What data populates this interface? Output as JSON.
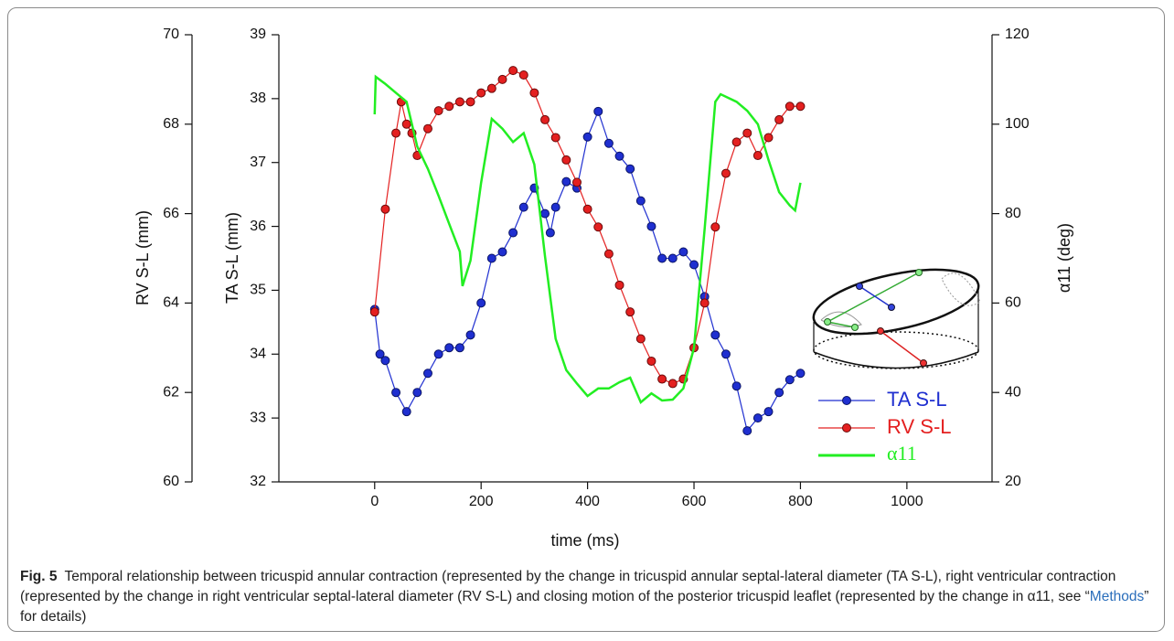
{
  "chart_data": {
    "type": "scatter",
    "xlabel": "time (ms)",
    "ylabel": "TA S-L (mm)",
    "y2label": "RV S-L (mm)",
    "y3label": "α11 (deg)",
    "xlim": [
      -180,
      1160
    ],
    "xticks": [
      0,
      200,
      400,
      600,
      800,
      1000
    ],
    "ylim": [
      32,
      39
    ],
    "yticks": [
      32,
      33,
      34,
      35,
      36,
      37,
      38,
      39
    ],
    "y2lim": [
      60,
      70
    ],
    "y2ticks": [
      60,
      62,
      64,
      66,
      68,
      70
    ],
    "y3lim": [
      20,
      120
    ],
    "y3ticks": [
      20,
      40,
      60,
      80,
      100,
      120
    ],
    "legend": "lower right",
    "series": [
      {
        "name": "TA S-L",
        "color": "#1f2fd0",
        "axis": "y",
        "style": "markers",
        "x": [
          0,
          10,
          20,
          40,
          60,
          80,
          100,
          120,
          140,
          160,
          180,
          200,
          220,
          240,
          260,
          280,
          300,
          320,
          330,
          340,
          360,
          380,
          400,
          420,
          440,
          460,
          480,
          500,
          520,
          540,
          560,
          580,
          600,
          620,
          640,
          660,
          680,
          700,
          720,
          740,
          760,
          780,
          800
        ],
        "values": [
          34.7,
          34.0,
          33.9,
          33.4,
          33.1,
          33.4,
          33.7,
          34.0,
          34.1,
          34.1,
          34.3,
          34.8,
          35.5,
          35.6,
          35.9,
          36.3,
          36.6,
          36.2,
          35.9,
          36.3,
          36.7,
          36.6,
          37.4,
          37.8,
          37.3,
          37.1,
          36.9,
          36.4,
          36.0,
          35.5,
          35.5,
          35.6,
          35.4,
          34.9,
          34.3,
          34.0,
          33.5,
          32.8,
          33.0,
          33.1,
          33.4,
          33.6,
          33.7
        ]
      },
      {
        "name": "RV S-L",
        "color": "#e42020",
        "axis": "y2",
        "style": "markers",
        "x": [
          0,
          20,
          40,
          50,
          60,
          70,
          80,
          100,
          120,
          140,
          160,
          180,
          200,
          220,
          240,
          260,
          280,
          300,
          320,
          340,
          360,
          380,
          400,
          420,
          440,
          460,
          480,
          500,
          520,
          540,
          560,
          580,
          600,
          620,
          640,
          660,
          680,
          700,
          720,
          740,
          760,
          780,
          800
        ],
        "values": [
          63.8,
          66.1,
          67.8,
          68.5,
          68.0,
          67.8,
          67.3,
          67.9,
          68.3,
          68.4,
          68.5,
          68.5,
          68.7,
          68.8,
          69.0,
          69.2,
          69.1,
          68.7,
          68.1,
          67.7,
          67.2,
          66.7,
          66.1,
          65.7,
          65.1,
          64.4,
          63.8,
          63.2,
          62.7,
          62.3,
          62.2,
          62.3,
          63.0,
          64.0,
          65.7,
          66.9,
          67.6,
          67.8,
          67.3,
          67.7,
          68.1,
          68.4,
          68.4
        ]
      },
      {
        "name": "α11",
        "color": "#22ee22",
        "axis": "y3",
        "style": "line",
        "x": [
          0,
          2,
          20,
          40,
          60,
          80,
          100,
          120,
          140,
          160,
          165,
          180,
          200,
          220,
          240,
          260,
          280,
          300,
          320,
          340,
          360,
          380,
          400,
          420,
          440,
          460,
          480,
          500,
          520,
          540,
          560,
          580,
          600,
          620,
          640,
          650,
          680,
          700,
          720,
          740,
          760,
          780,
          790,
          800
        ],
        "values": [
          102.2,
          110.6,
          109,
          107,
          105,
          95,
          90,
          84,
          77.7,
          71.5,
          63.8,
          69.5,
          86.9,
          101.2,
          99,
          96,
          98,
          91,
          70.5,
          52,
          45,
          42,
          39.2,
          40.9,
          40.9,
          42.3,
          43.3,
          37.8,
          39.8,
          38.2,
          38.4,
          40.9,
          50,
          76.6,
          105,
          106.7,
          105,
          103,
          100,
          92,
          84.8,
          81.8,
          80.7,
          86.9
        ]
      }
    ],
    "caption": {
      "label": "Fig. 5",
      "text": "Temporal relationship between tricuspid annular contraction (represented by the change in tricuspid annular septal-lateral diameter (TA S-L), right ventricular contraction (represented by the change in right ventricular septal-lateral diameter (RV S-L) and closing motion of the posterior tricuspid leaflet (represented by the change in α11, see “",
      "link": "Methods",
      "text_after": "” for details)"
    }
  }
}
